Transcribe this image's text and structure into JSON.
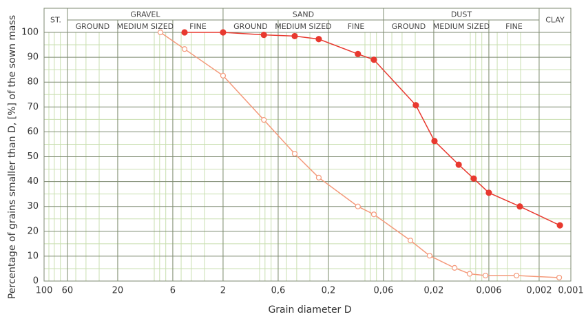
{
  "chart_data": {
    "type": "line",
    "xlabel": "Grain diameter D",
    "ylabel": "Percentage of grains smaller than D, [%] of the sown mass",
    "xscale": "log",
    "x_reversed": true,
    "xlim": [
      100,
      0.001
    ],
    "ylim": [
      0,
      100
    ],
    "xticks": [
      100,
      60,
      20,
      6,
      2,
      {
        "value": 0.6,
        "label": "0,6"
      },
      {
        "value": 0.2,
        "label": "0,2"
      },
      {
        "value": 0.06,
        "label": "0,06"
      },
      {
        "value": 0.02,
        "label": "0,02"
      },
      {
        "value": 0.006,
        "label": "0,006"
      },
      {
        "value": 0.002,
        "label": "0,002"
      },
      {
        "value": 0.001,
        "label": "0,001"
      }
    ],
    "yticks": [
      0,
      10,
      20,
      30,
      40,
      50,
      60,
      70,
      80,
      90,
      100
    ],
    "grid": true,
    "header": {
      "stones": "ST.",
      "clay": "CLAY",
      "groups": [
        {
          "name": "GRAVEL",
          "subclasses": [
            "GROUND",
            "MEDIUM SIZED",
            "FINE"
          ]
        },
        {
          "name": "SAND",
          "subclasses": [
            "GROUND",
            "MEDIUM SIZED",
            "FINE"
          ]
        },
        {
          "name": "DUST",
          "subclasses": [
            "GROUND",
            "MEDIUM SIZED",
            "FINE"
          ]
        }
      ]
    },
    "series": [
      {
        "color": "#e8392f",
        "marker": "filled",
        "x": [
          4.64,
          2,
          0.82,
          0.418,
          0.247,
          0.105,
          0.074,
          0.0296,
          0.0197,
          0.0116,
          0.00835,
          0.006,
          0.00305,
          0.00127
        ],
        "values": [
          100,
          100,
          99,
          98.5,
          97.3,
          91.3,
          89,
          70.7,
          56.3,
          46.8,
          41.2,
          35.5,
          30,
          22.4
        ]
      },
      {
        "color": "#f4997a",
        "marker": "open",
        "x": [
          7.86,
          4.64,
          2,
          0.82,
          0.418,
          0.247,
          0.105,
          0.074,
          0.0333,
          0.0219,
          0.0127,
          0.00914,
          0.00646,
          0.00328,
          0.00129
        ],
        "values": [
          100,
          93.3,
          82.6,
          64.8,
          51.2,
          41.6,
          30,
          26.8,
          16.3,
          10.2,
          5.3,
          2.9,
          2.2,
          2.2,
          1.4
        ]
      }
    ]
  }
}
